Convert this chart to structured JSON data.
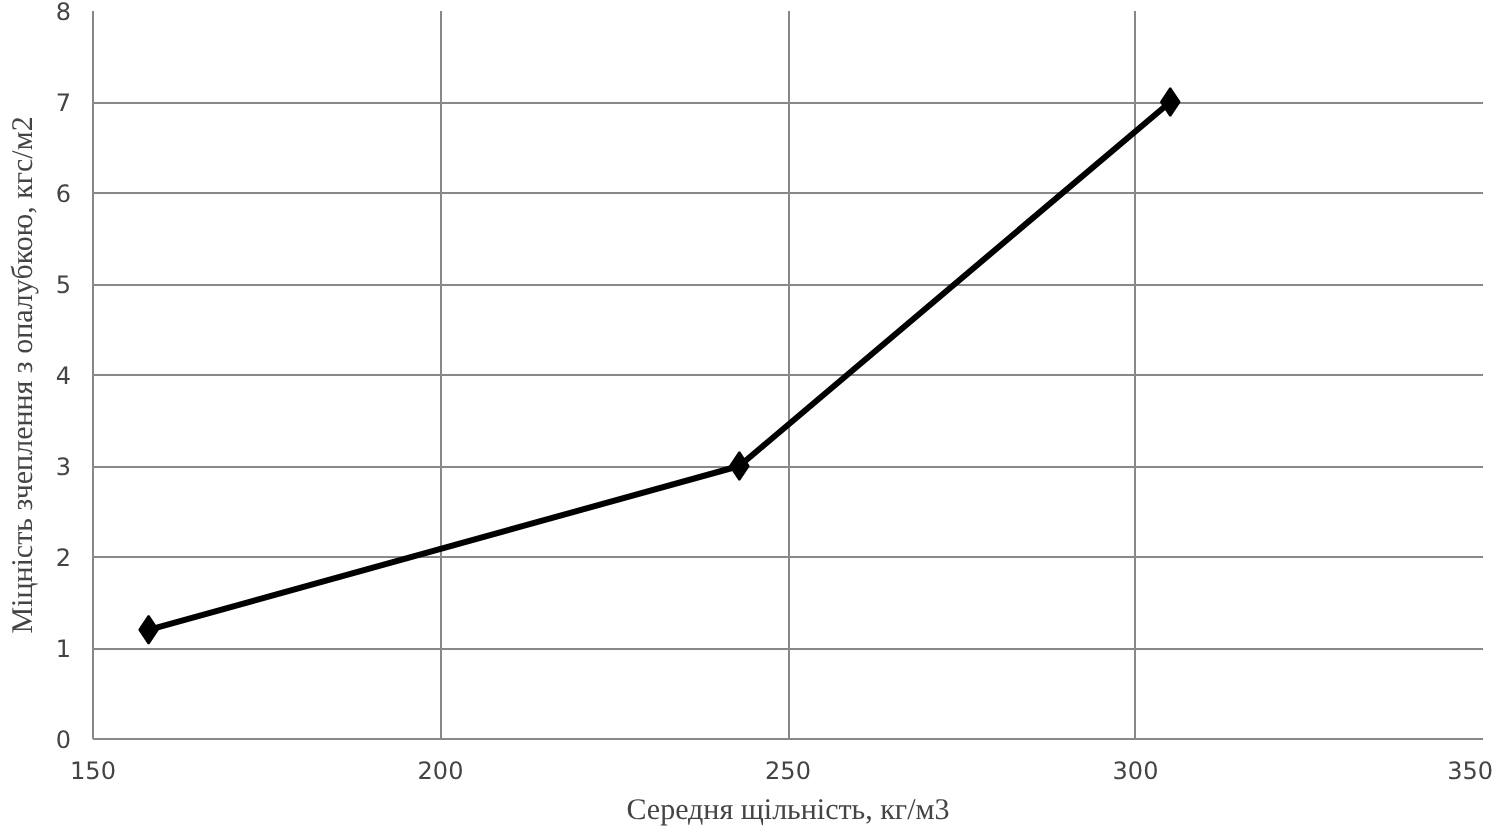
{
  "chart_data": {
    "type": "line",
    "xlabel": "Середня щільність, кг/м3",
    "ylabel": "Міцність зчеплення з опалубкою, кгс/м2",
    "x": [
      158,
      243,
      305
    ],
    "series": [
      {
        "color": "#000000",
        "values": [
          1.2,
          3.0,
          7.0
        ]
      }
    ],
    "xlim": [
      150,
      350
    ],
    "xticks": [
      150,
      200,
      250,
      300,
      350
    ],
    "ylim": [
      0,
      8
    ],
    "yticks": [
      0,
      1,
      2,
      3,
      4,
      5,
      6,
      7,
      8
    ],
    "grid": true,
    "marker": "diamond",
    "line_style": "solid"
  }
}
